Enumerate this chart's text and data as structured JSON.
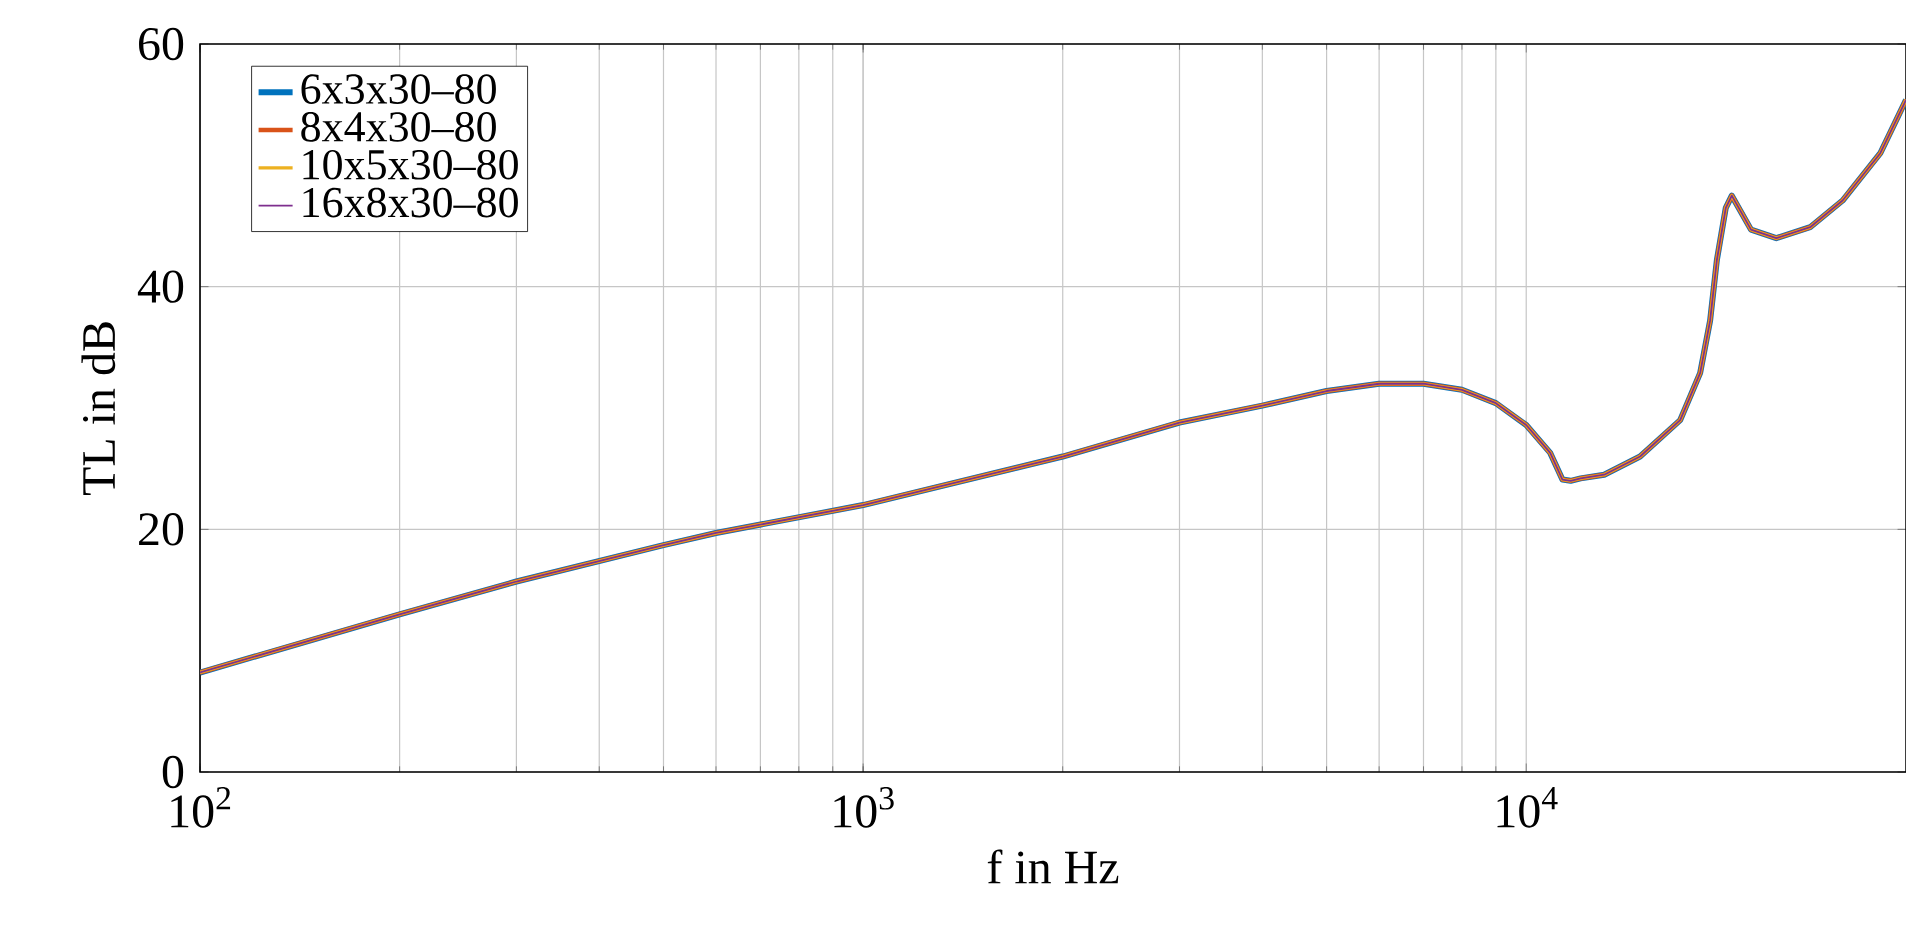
{
  "chart_data": {
    "type": "line",
    "xlabel": "f in Hz",
    "ylabel": "TL in dB",
    "log": "x",
    "grid": true,
    "legend": "top left",
    "marker": "none",
    "line_style": "solid",
    "xlim": [
      100,
      37400
    ],
    "ylim": [
      0,
      60
    ],
    "xticks": [
      {
        "value": 100,
        "label": "10$^{2}$"
      },
      {
        "value": 1000,
        "label": "10$^{3}$"
      },
      {
        "value": 10000,
        "label": "10$^{4}$"
      }
    ],
    "yticks": [
      0,
      20,
      40,
      60
    ],
    "x": [
      100,
      200,
      300,
      500,
      600,
      1000,
      2000,
      3000,
      4000,
      5000,
      6000,
      7000,
      8000,
      9000,
      10000,
      10870,
      11340,
      11670,
      12080,
      13110,
      14850,
      17070,
      18300,
      18940,
      19390,
      20000,
      20420,
      21830,
      23830,
      26800,
      30000,
      34200,
      37400
    ],
    "series": [
      {
        "name": "6x3x30–80",
        "color": "#0072bd",
        "values": [
          8.2,
          13.0,
          15.7,
          18.7,
          19.7,
          22.0,
          26.0,
          28.8,
          30.2,
          31.4,
          32.0,
          32.0,
          31.5,
          30.4,
          28.6,
          26.3,
          24.1,
          24.0,
          24.2,
          24.5,
          26.0,
          29.0,
          32.9,
          37.2,
          42.2,
          46.5,
          47.5,
          44.7,
          44.0,
          44.9,
          47.1,
          51.0,
          55.4
        ]
      },
      {
        "name": "8x4x30–80",
        "color": "#d95319",
        "values": [
          8.2,
          13.0,
          15.7,
          18.7,
          19.7,
          22.0,
          26.0,
          28.8,
          30.2,
          31.4,
          32.0,
          32.0,
          31.5,
          30.4,
          28.6,
          26.3,
          24.1,
          24.0,
          24.2,
          24.5,
          26.0,
          29.0,
          32.9,
          37.2,
          42.2,
          46.5,
          47.5,
          44.7,
          44.0,
          44.9,
          47.1,
          51.0,
          55.4
        ]
      },
      {
        "name": "10x5x30–80",
        "color": "#edb120",
        "values": [
          8.2,
          13.0,
          15.7,
          18.7,
          19.7,
          22.0,
          26.0,
          28.8,
          30.2,
          31.4,
          32.0,
          32.0,
          31.5,
          30.4,
          28.6,
          26.3,
          24.1,
          24.0,
          24.2,
          24.5,
          26.0,
          29.0,
          32.9,
          37.2,
          42.2,
          46.5,
          47.5,
          44.7,
          44.0,
          44.9,
          47.1,
          51.0,
          55.4
        ]
      },
      {
        "name": "16x8x30–80",
        "color": "#7e2f8e",
        "values": [
          8.2,
          13.0,
          15.7,
          18.7,
          19.7,
          22.0,
          26.0,
          28.8,
          30.2,
          31.4,
          32.0,
          32.0,
          31.5,
          30.4,
          28.6,
          26.3,
          24.1,
          24.0,
          24.2,
          24.5,
          26.0,
          29.0,
          32.9,
          37.2,
          42.2,
          46.5,
          47.5,
          44.7,
          44.0,
          44.9,
          47.1,
          51.0,
          55.4
        ]
      }
    ]
  }
}
